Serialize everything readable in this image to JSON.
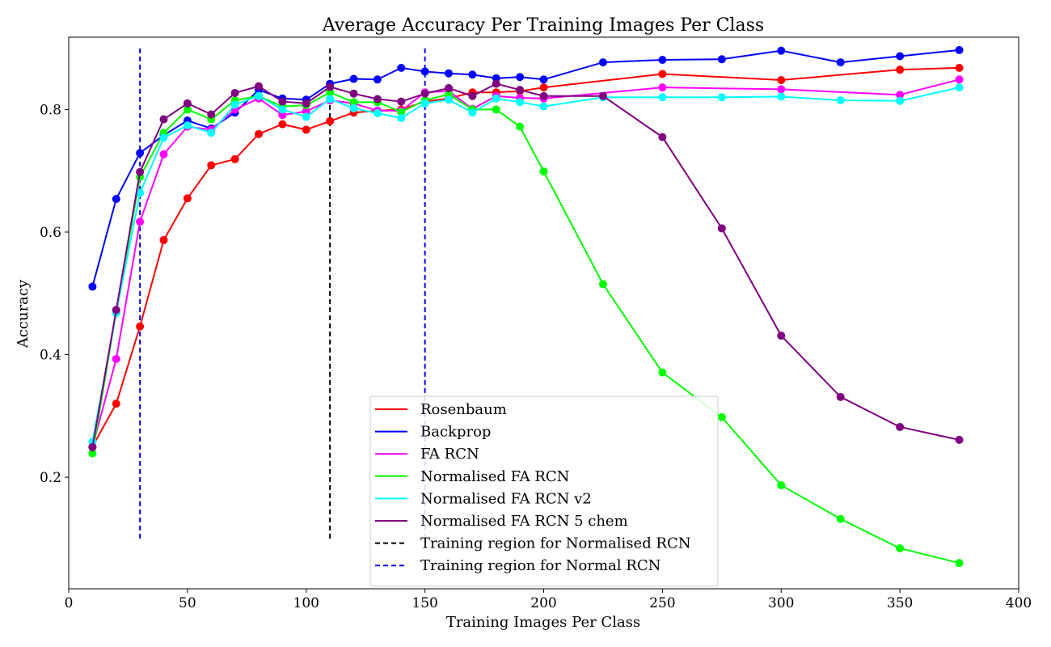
{
  "chart_data": {
    "type": "line",
    "title": "Average Accuracy Per Training Images Per Class",
    "xlabel": "Training Images Per Class",
    "ylabel": "Accuracy",
    "xlim": [
      0,
      400
    ],
    "ylim": [
      0.018,
      0.918
    ],
    "xticks": [
      0,
      50,
      100,
      150,
      200,
      250,
      300,
      350,
      400
    ],
    "yticks": [
      0.2,
      0.4,
      0.6,
      0.8
    ],
    "xtick_labels": [
      "0",
      "50",
      "100",
      "150",
      "200",
      "250",
      "300",
      "350",
      "400"
    ],
    "ytick_labels": [
      "0.2",
      "0.4",
      "0.6",
      "0.8"
    ],
    "grid": false,
    "legend_position": "bottom-center",
    "x": [
      10,
      20,
      30,
      40,
      50,
      60,
      70,
      80,
      90,
      100,
      110,
      120,
      130,
      140,
      150,
      160,
      170,
      180,
      190,
      200,
      225,
      250,
      275,
      300,
      325,
      350,
      375
    ],
    "series": [
      {
        "name": "Rosenbaum",
        "color": "#ff0000",
        "x": [
          10,
          20,
          30,
          40,
          50,
          60,
          70,
          80,
          90,
          100,
          110,
          120,
          130,
          140,
          150,
          160,
          170,
          180,
          190,
          200,
          250,
          300,
          350,
          375
        ],
        "values": [
          0.25,
          0.32,
          0.446,
          0.587,
          0.655,
          0.709,
          0.719,
          0.76,
          0.776,
          0.767,
          0.781,
          0.795,
          0.798,
          0.8,
          0.813,
          0.818,
          0.828,
          0.828,
          0.83,
          0.836,
          0.858,
          0.848,
          0.865,
          0.868
        ]
      },
      {
        "name": "Backprop",
        "color": "#0000ff",
        "x": [
          10,
          20,
          30,
          40,
          50,
          60,
          70,
          80,
          90,
          100,
          110,
          120,
          130,
          140,
          150,
          160,
          170,
          180,
          190,
          200,
          225,
          250,
          275,
          300,
          325,
          350,
          375
        ],
        "values": [
          0.511,
          0.654,
          0.729,
          0.758,
          0.782,
          0.769,
          0.795,
          0.832,
          0.818,
          0.816,
          0.842,
          0.85,
          0.849,
          0.868,
          0.862,
          0.859,
          0.857,
          0.851,
          0.853,
          0.849,
          0.877,
          0.881,
          0.882,
          0.896,
          0.877,
          0.887,
          0.897
        ]
      },
      {
        "name": "FA RCN",
        "color": "#ff00ff",
        "x": [
          10,
          20,
          30,
          40,
          50,
          60,
          70,
          80,
          90,
          100,
          110,
          120,
          130,
          140,
          150,
          160,
          170,
          180,
          190,
          200,
          250,
          300,
          350,
          375
        ],
        "values": [
          0.25,
          0.393,
          0.617,
          0.727,
          0.772,
          0.767,
          0.8,
          0.818,
          0.791,
          0.797,
          0.815,
          0.81,
          0.798,
          0.798,
          0.828,
          0.83,
          0.801,
          0.822,
          0.819,
          0.818,
          0.836,
          0.833,
          0.824,
          0.849
        ]
      },
      {
        "name": "Normalised FA RCN",
        "color": "#00ff00",
        "x": [
          10,
          20,
          30,
          40,
          50,
          60,
          70,
          80,
          90,
          100,
          110,
          120,
          130,
          140,
          150,
          160,
          170,
          180,
          190,
          200,
          225,
          250,
          275,
          300,
          325,
          350,
          375
        ],
        "values": [
          0.239,
          0.47,
          0.69,
          0.762,
          0.8,
          0.784,
          0.815,
          0.822,
          0.805,
          0.807,
          0.828,
          0.812,
          0.812,
          0.796,
          0.815,
          0.825,
          0.8,
          0.8,
          0.772,
          0.699,
          0.515,
          0.371,
          0.298,
          0.187,
          0.132,
          0.084,
          0.06
        ]
      },
      {
        "name": "Normalised FA RCN v2",
        "color": "#00ffff",
        "x": [
          10,
          20,
          30,
          40,
          50,
          60,
          70,
          80,
          90,
          100,
          110,
          120,
          130,
          140,
          150,
          160,
          170,
          180,
          190,
          200,
          225,
          250,
          275,
          300,
          325,
          350,
          375
        ],
        "values": [
          0.258,
          0.468,
          0.664,
          0.754,
          0.774,
          0.762,
          0.808,
          0.822,
          0.8,
          0.788,
          0.817,
          0.802,
          0.794,
          0.786,
          0.81,
          0.816,
          0.795,
          0.818,
          0.812,
          0.805,
          0.82,
          0.82,
          0.82,
          0.821,
          0.815,
          0.814,
          0.836
        ]
      },
      {
        "name": "Normalised FA RCN 5 chem",
        "color": "#800080",
        "x": [
          10,
          20,
          30,
          40,
          50,
          60,
          70,
          80,
          90,
          100,
          110,
          120,
          130,
          140,
          150,
          160,
          170,
          180,
          190,
          200,
          225,
          250,
          275,
          300,
          325,
          350,
          375
        ],
        "values": [
          0.249,
          0.473,
          0.698,
          0.784,
          0.81,
          0.792,
          0.827,
          0.838,
          0.813,
          0.81,
          0.837,
          0.826,
          0.817,
          0.813,
          0.826,
          0.835,
          0.822,
          0.842,
          0.832,
          0.822,
          0.822,
          0.755,
          0.606,
          0.431,
          0.331,
          0.282,
          0.261
        ]
      }
    ],
    "vertical_lines": [
      {
        "name": "Training region for Normalised RCN",
        "color": "#000000",
        "x": [
          110
        ],
        "y_range": [
          0.1,
          0.9
        ]
      },
      {
        "name": "Training region for Normal RCN",
        "color": "#0000ff",
        "x": [
          30,
          150
        ],
        "y_range": [
          0.1,
          0.9
        ]
      }
    ]
  }
}
